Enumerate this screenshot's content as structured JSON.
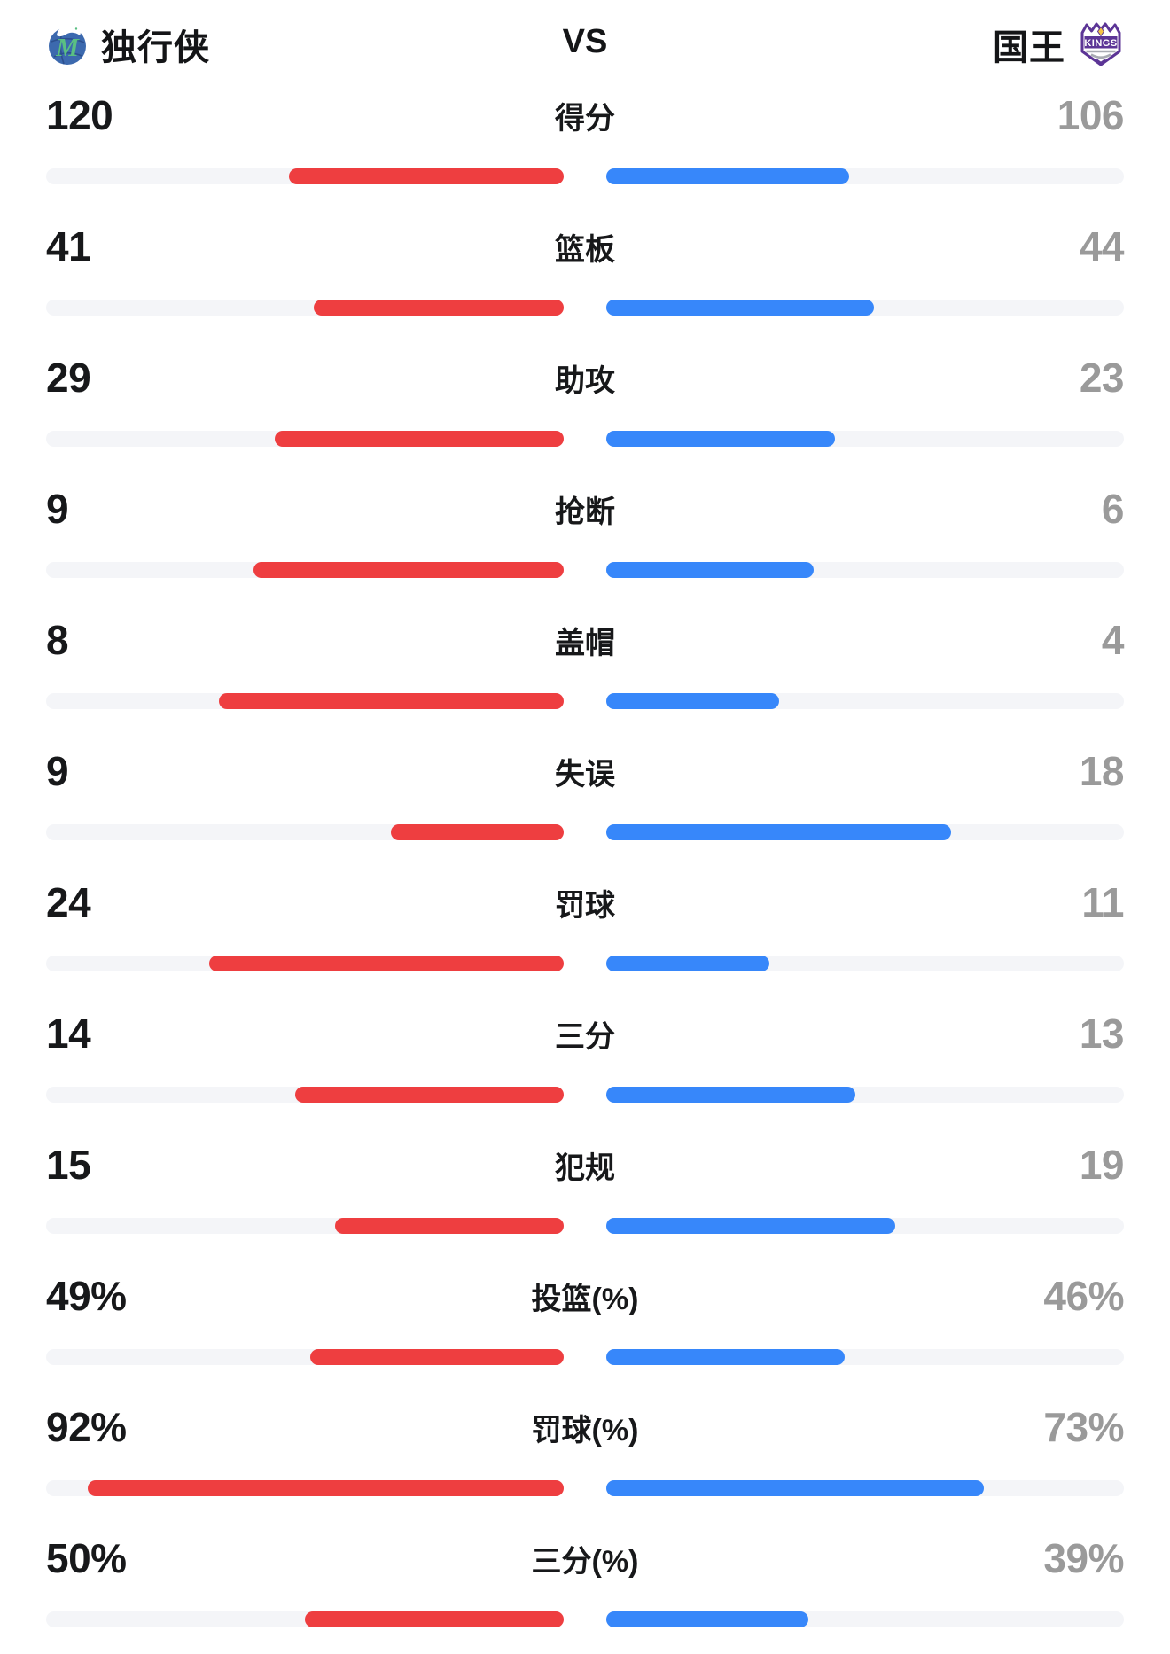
{
  "header": {
    "left_team": {
      "name": "独行侠"
    },
    "vs_label": "VS",
    "right_team": {
      "name": "国王",
      "logo_text": "KINGS"
    }
  },
  "colors": {
    "left_bar": "#ee3e40",
    "right_bar": "#3787fa",
    "bar_track": "#f4f5f8",
    "left_value_text": "#17181a",
    "right_value_text": "#9a9a9a",
    "mavericks_blue": "#3c69ae",
    "mavericks_green": "#5abf82",
    "kings_purple": "#5c3596",
    "kings_gold": "#f6c344"
  },
  "stats": {
    "rows": [
      {
        "label": "得分",
        "left": "120",
        "right": "106",
        "left_value": 120,
        "right_value": 106,
        "percent": false
      },
      {
        "label": "篮板",
        "left": "41",
        "right": "44",
        "left_value": 41,
        "right_value": 44,
        "percent": false
      },
      {
        "label": "助攻",
        "left": "29",
        "right": "23",
        "left_value": 29,
        "right_value": 23,
        "percent": false
      },
      {
        "label": "抢断",
        "left": "9",
        "right": "6",
        "left_value": 9,
        "right_value": 6,
        "percent": false
      },
      {
        "label": "盖帽",
        "left": "8",
        "right": "4",
        "left_value": 8,
        "right_value": 4,
        "percent": false
      },
      {
        "label": "失误",
        "left": "9",
        "right": "18",
        "left_value": 9,
        "right_value": 18,
        "percent": false
      },
      {
        "label": "罚球",
        "left": "24",
        "right": "11",
        "left_value": 24,
        "right_value": 11,
        "percent": false
      },
      {
        "label": "三分",
        "left": "14",
        "right": "13",
        "left_value": 14,
        "right_value": 13,
        "percent": false
      },
      {
        "label": "犯规",
        "left": "15",
        "right": "19",
        "left_value": 15,
        "right_value": 19,
        "percent": false
      },
      {
        "label": "投篮(%)",
        "left": "49%",
        "right": "46%",
        "left_value": 49,
        "right_value": 46,
        "percent": true
      },
      {
        "label": "罚球(%)",
        "left": "92%",
        "right": "73%",
        "left_value": 92,
        "right_value": 73,
        "percent": true
      },
      {
        "label": "三分(%)",
        "left": "50%",
        "right": "39%",
        "left_value": 50,
        "right_value": 39,
        "percent": true
      }
    ]
  },
  "chart_data": {
    "type": "bar",
    "orientation": "horizontal-paired",
    "title": "独行侠 VS 国王",
    "categories": [
      "得分",
      "篮板",
      "助攻",
      "抢断",
      "盖帽",
      "失误",
      "罚球",
      "三分",
      "犯规",
      "投篮(%)",
      "罚球(%)",
      "三分(%)"
    ],
    "series": [
      {
        "name": "独行侠",
        "color": "#ee3e40",
        "values": [
          120,
          41,
          29,
          9,
          8,
          9,
          24,
          14,
          15,
          49,
          92,
          50
        ]
      },
      {
        "name": "国王",
        "color": "#3787fa",
        "values": [
          106,
          44,
          23,
          6,
          4,
          18,
          11,
          13,
          19,
          46,
          73,
          39
        ]
      }
    ],
    "bar_scaling": "count rows scaled to left/(left+right) of half-track; percent rows scaled to value/100",
    "legend_position": "header",
    "grid": false
  }
}
